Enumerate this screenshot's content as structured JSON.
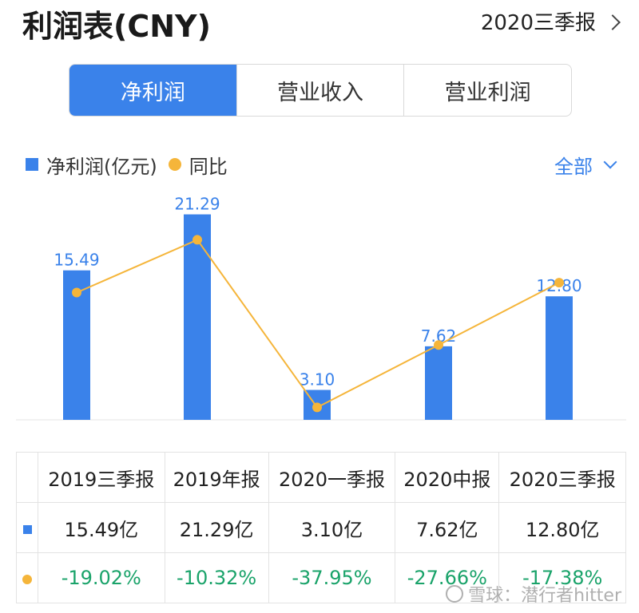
{
  "header": {
    "title": "利润表(CNY)",
    "period": "2020三季报"
  },
  "tabs": [
    {
      "label": "净利润",
      "active": true
    },
    {
      "label": "营业收入",
      "active": false
    },
    {
      "label": "营业利润",
      "active": false
    }
  ],
  "legend": {
    "bar_label": "净利润(亿元)",
    "line_label": "同比",
    "scope": "全部"
  },
  "colors": {
    "bar": "#3a82ea",
    "line": "#f5b53a",
    "positive_text": "#1aa36a"
  },
  "chart_data": {
    "type": "bar",
    "categories": [
      "2019三季报",
      "2019年报",
      "2020一季报",
      "2020中报",
      "2020三季报"
    ],
    "series": [
      {
        "name": "净利润(亿元)",
        "type": "bar",
        "values": [
          15.49,
          21.29,
          3.1,
          7.62,
          12.8
        ],
        "labels": [
          "15.49",
          "21.29",
          "3.10",
          "7.62",
          "12.80"
        ]
      },
      {
        "name": "同比",
        "type": "line",
        "values": [
          -19.02,
          -10.32,
          -37.95,
          -27.66,
          -17.38
        ]
      }
    ],
    "ylim": [
      0,
      22
    ],
    "yoy_range": [
      -40,
      -5
    ],
    "grid": false
  },
  "table": {
    "headers": [
      "2019三季报",
      "2019年报",
      "2020一季报",
      "2020中报",
      "2020三季报"
    ],
    "values_row": [
      "15.49亿",
      "21.29亿",
      "3.10亿",
      "7.62亿",
      "12.80亿"
    ],
    "yoy_row": [
      "-19.02%",
      "-10.32%",
      "-37.95%",
      "-27.66%",
      "-17.38%"
    ]
  },
  "watermark": "雪球：潜行者hitter"
}
